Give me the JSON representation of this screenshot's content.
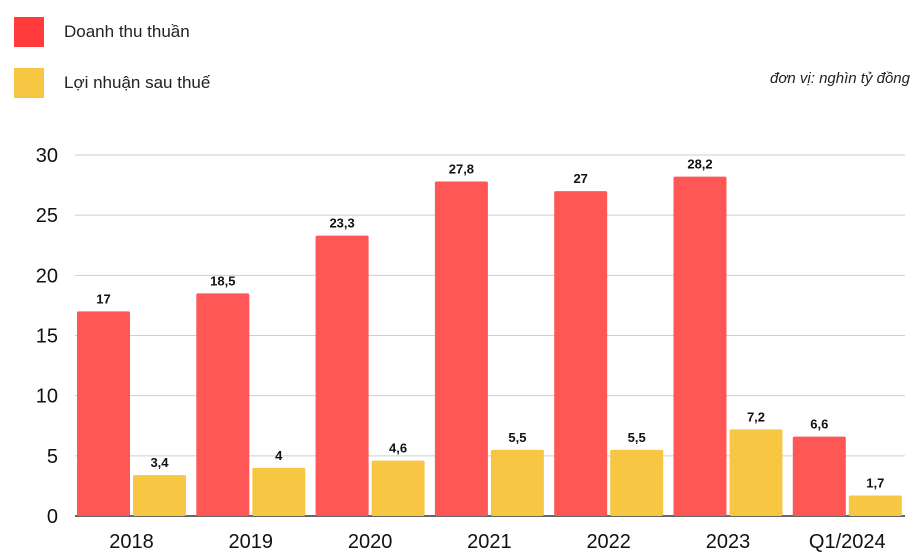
{
  "legend": [
    {
      "label": "Doanh thu thuần",
      "color": "#ff3b3b"
    },
    {
      "label": "Lợi nhuận sau thuế",
      "color": "#f7c744"
    }
  ],
  "unit_note": "đơn vị:  nghìn tỷ đồng",
  "chart_data": {
    "type": "bar",
    "categories": [
      "2018",
      "2019",
      "2020",
      "2021",
      "2022",
      "2023",
      "Q1/2024"
    ],
    "series": [
      {
        "name": "Doanh thu thuần",
        "color": "#ff5656",
        "values": [
          17,
          18.5,
          23.3,
          27.8,
          27,
          28.2,
          6.6
        ],
        "value_labels": [
          "17",
          "18,5",
          "23,3",
          "27,8",
          "27",
          "28,2",
          "6,6"
        ]
      },
      {
        "name": "Lợi nhuận sau thuế",
        "color": "#f7c744",
        "values": [
          3.4,
          4,
          4.6,
          5.5,
          5.5,
          7.2,
          1.7
        ],
        "value_labels": [
          "3,4",
          "4",
          "4,6",
          "5,5",
          "5,5",
          "7,2",
          "1,7"
        ]
      }
    ],
    "yticks": [
      0,
      5,
      10,
      15,
      20,
      25,
      30
    ],
    "ylim": [
      0,
      30
    ],
    "grid": true,
    "legend_position": "top-left"
  }
}
